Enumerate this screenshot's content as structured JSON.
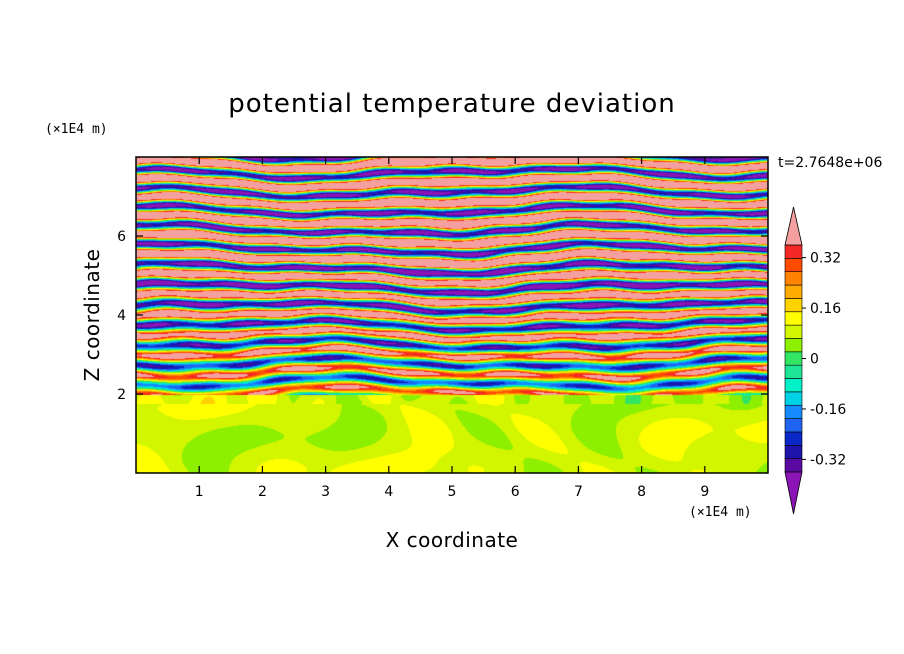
{
  "chart_data": {
    "type": "heatmap",
    "title": "potential temperature deviation",
    "xlabel": "X coordinate",
    "ylabel": "Z coordinate",
    "x_unit": "(×1E4 m)",
    "y_unit": "(×1E4 m)",
    "time_label": "t=2.7648e+06",
    "xlim": [
      0,
      10
    ],
    "ylim": [
      0,
      8
    ],
    "x_ticks": [
      1,
      2,
      3,
      4,
      5,
      6,
      7,
      8,
      9
    ],
    "y_ticks": [
      2,
      4,
      6
    ],
    "colorbar": {
      "levels": [
        -0.4,
        -0.36,
        -0.32,
        -0.28,
        -0.24,
        -0.2,
        -0.16,
        -0.12,
        -0.08,
        -0.04,
        0,
        0.04,
        0.08,
        0.12,
        0.16,
        0.2,
        0.24,
        0.28,
        0.32,
        0.36,
        0.4
      ],
      "tick_values": [
        -0.32,
        -0.16,
        0,
        0.16,
        0.32
      ],
      "tick_labels": [
        "-0.32",
        "-0.16",
        "0",
        "0.16",
        "0.32"
      ],
      "colors": [
        "#8a14b4",
        "#5a0aa0",
        "#1e14aa",
        "#0a28c8",
        "#1e64f0",
        "#148cff",
        "#00d2e6",
        "#00f0c8",
        "#1ee696",
        "#32e664",
        "#8cf000",
        "#d2f500",
        "#ffff00",
        "#ffd200",
        "#ffaa00",
        "#ff8200",
        "#ff4b00",
        "#f52828",
        "#f5a0a0"
      ],
      "extend": "both"
    }
  }
}
